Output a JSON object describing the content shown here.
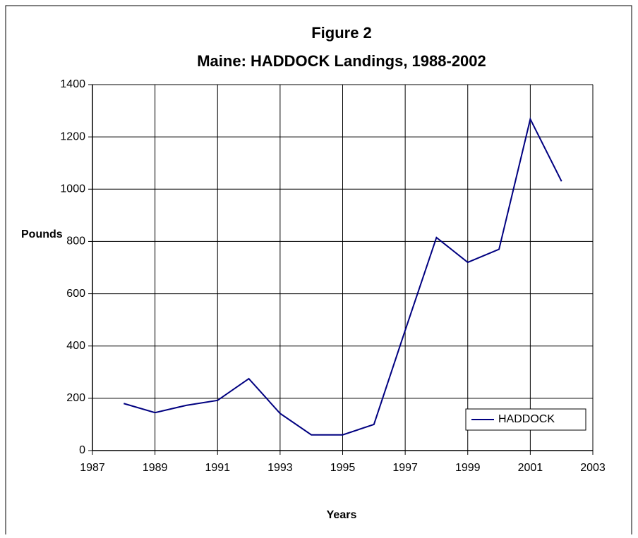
{
  "chart_data": {
    "type": "line",
    "title": "Figure 2",
    "subtitle": "Maine: HADDOCK Landings, 1988-2002",
    "xlabel": "Years",
    "ylabel": "Pounds",
    "x": [
      1988,
      1989,
      1990,
      1991,
      1992,
      1993,
      1994,
      1995,
      1996,
      1997,
      1998,
      1999,
      2000,
      2001,
      2002
    ],
    "series": [
      {
        "name": "HADDOCK",
        "color": "#000080",
        "values": [
          180,
          145,
          173,
          192,
          275,
          142,
          60,
          60,
          100,
          460,
          815,
          720,
          770,
          1268,
          1030
        ]
      }
    ],
    "xlim": [
      1987,
      2003
    ],
    "xticks": [
      1987,
      1989,
      1991,
      1993,
      1995,
      1997,
      1999,
      2001,
      2003
    ],
    "ylim": [
      0,
      1400
    ],
    "yticks": [
      0,
      200,
      400,
      600,
      800,
      1000,
      1200,
      1400
    ],
    "grid": true,
    "legend": "lower right"
  }
}
